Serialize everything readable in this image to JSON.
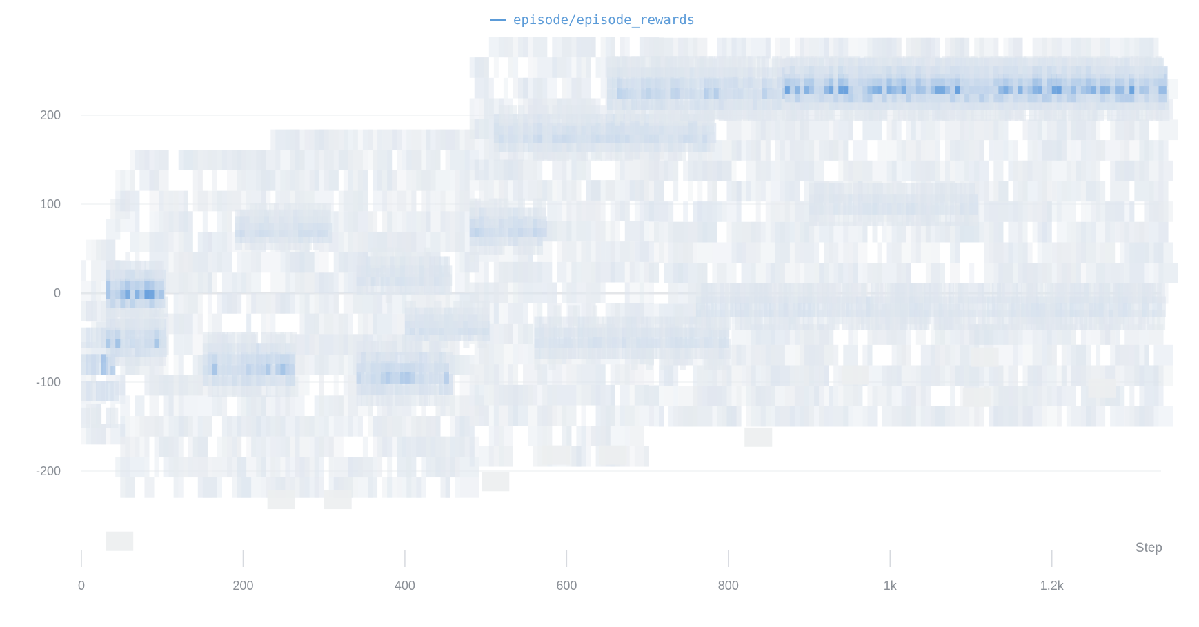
{
  "legend": {
    "label": "episode/episode_rewards",
    "color": "#5b9bd8"
  },
  "chart_data": {
    "type": "heatmap",
    "title": "",
    "series": [
      {
        "name": "episode/episode_rewards"
      }
    ],
    "xlabel": "Step",
    "ylabel": "",
    "xlim": [
      0,
      1335
    ],
    "ylim": [
      -290,
      280
    ],
    "x_ticks": [
      {
        "value": 0,
        "label": "0"
      },
      {
        "value": 200,
        "label": "200"
      },
      {
        "value": 400,
        "label": "400"
      },
      {
        "value": 600,
        "label": "600"
      },
      {
        "value": 800,
        "label": "800"
      },
      {
        "value": 1000,
        "label": "1k"
      },
      {
        "value": 1200,
        "label": "1.2k"
      }
    ],
    "y_ticks": [
      {
        "value": 200,
        "label": "200"
      },
      {
        "value": 100,
        "label": "100"
      },
      {
        "value": 0,
        "label": "0"
      },
      {
        "value": -100,
        "label": "-100"
      },
      {
        "value": -200,
        "label": "-200"
      }
    ],
    "grid": true,
    "legend_position": "top-center",
    "colors": {
      "low": "#eceef0",
      "mid": "#c9d9ec",
      "high": "#4a8fd8"
    },
    "density_bands": [
      {
        "x": [
          0,
          40
        ],
        "y_center": -80,
        "y_spread": 60,
        "intensity": 0.6
      },
      {
        "x": [
          30,
          100
        ],
        "y_center": 5,
        "y_spread": 20,
        "intensity": 0.8
      },
      {
        "x": [
          30,
          100
        ],
        "y_center": -50,
        "y_spread": 20,
        "intensity": 0.6
      },
      {
        "x": [
          150,
          260
        ],
        "y_center": -80,
        "y_spread": 25,
        "intensity": 0.6
      },
      {
        "x": [
          190,
          300
        ],
        "y_center": 75,
        "y_spread": 15,
        "intensity": 0.45
      },
      {
        "x": [
          340,
          450
        ],
        "y_center": -90,
        "y_spread": 25,
        "intensity": 0.55
      },
      {
        "x": [
          340,
          450
        ],
        "y_center": 20,
        "y_spread": 20,
        "intensity": 0.35
      },
      {
        "x": [
          400,
          500
        ],
        "y_center": -35,
        "y_spread": 15,
        "intensity": 0.4
      },
      {
        "x": [
          480,
          570
        ],
        "y_center": 75,
        "y_spread": 20,
        "intensity": 0.5
      },
      {
        "x": [
          510,
          780
        ],
        "y_center": 180,
        "y_spread": 20,
        "intensity": 0.45
      },
      {
        "x": [
          560,
          800
        ],
        "y_center": -50,
        "y_spread": 25,
        "intensity": 0.35
      },
      {
        "x": [
          650,
          1335
        ],
        "y_center": 230,
        "y_spread": 25,
        "intensity": 0.55
      },
      {
        "x": [
          870,
          1335
        ],
        "y_center": 235,
        "y_spread": 18,
        "intensity": 0.8
      },
      {
        "x": [
          760,
          1335
        ],
        "y_center": -15,
        "y_spread": 30,
        "intensity": 0.3
      },
      {
        "x": [
          900,
          1100
        ],
        "y_center": 100,
        "y_spread": 25,
        "intensity": 0.3
      }
    ]
  }
}
